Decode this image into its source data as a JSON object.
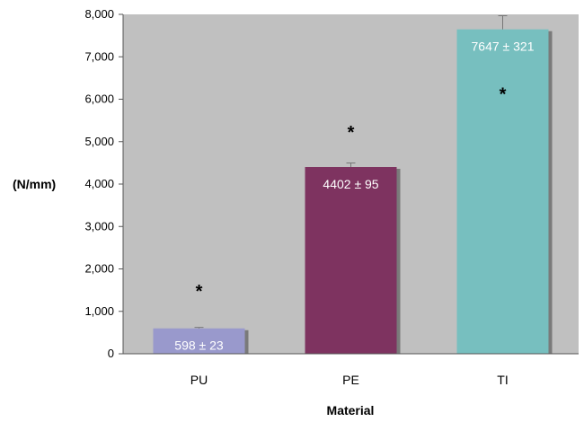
{
  "chart_data": {
    "type": "bar",
    "xlabel": "Material",
    "ylabel": "(N/mm)",
    "categories": [
      "PU",
      "PE",
      "TI"
    ],
    "values": [
      598,
      4402,
      7647
    ],
    "errors": [
      23,
      95,
      321
    ],
    "value_labels": [
      "598 ± 23",
      "4402 ± 95",
      "7647 ± 321"
    ],
    "significance_markers": [
      "*",
      "*",
      "*"
    ],
    "bar_colors": [
      "#9999cc",
      "#7e3360",
      "#77bfbf"
    ],
    "ylim": [
      0,
      8000
    ],
    "yticks": [
      0,
      1000,
      2000,
      3000,
      4000,
      5000,
      6000,
      7000,
      8000
    ],
    "ytick_labels": [
      "0",
      "1,000",
      "2,000",
      "3,000",
      "4,000",
      "5,000",
      "6,000",
      "7,000",
      "8,000"
    ],
    "grid": false,
    "plot_background": "#c0c0c0"
  }
}
